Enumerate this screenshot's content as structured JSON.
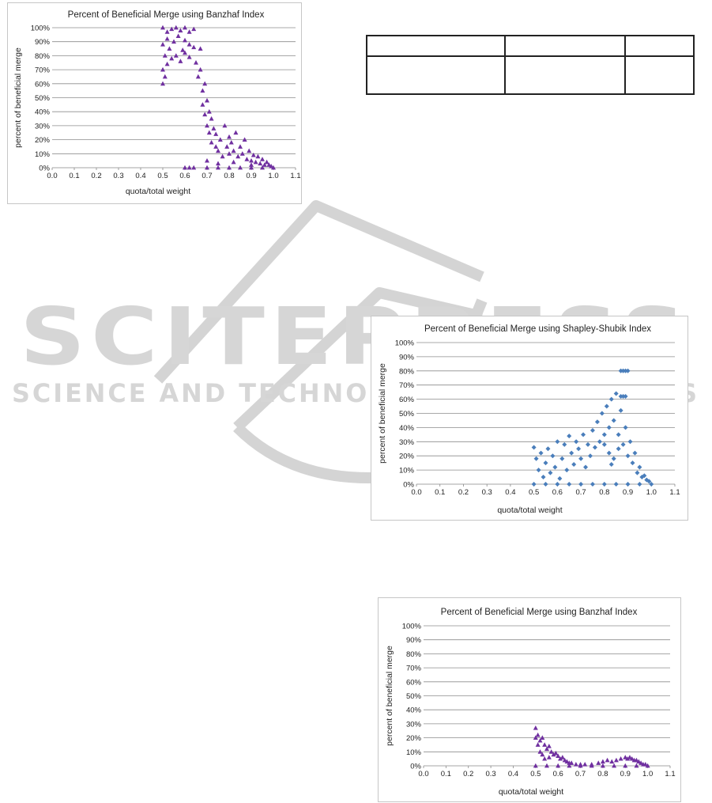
{
  "watermark": {
    "main": "SCITEPRESS",
    "sub": "SCIENCE AND TECHNOLOGY PUBLICATIONS"
  },
  "table": {
    "rows": 2,
    "cols": 3,
    "cells": []
  },
  "chart_data": [
    {
      "id": "top-left",
      "type": "scatter",
      "title": "Percent of Beneficial Merge using Banzhaf Index",
      "xlabel": "quota/total weight",
      "ylabel": "percent of beneficial merge",
      "xlim": [
        0.0,
        1.1
      ],
      "ylim": [
        0,
        100
      ],
      "xticks": [
        "0.0",
        "0.1",
        "0.2",
        "0.3",
        "0.4",
        "0.5",
        "0.6",
        "0.7",
        "0.8",
        "0.9",
        "1.0",
        "1.1"
      ],
      "yticks": [
        "0%",
        "10%",
        "20%",
        "30%",
        "40%",
        "50%",
        "60%",
        "70%",
        "80%",
        "90%",
        "100%"
      ],
      "grid": true,
      "legend": "none",
      "color": "#7030a0",
      "marker": "triangle",
      "series": [
        {
          "points": [
            [
              0.5,
              100
            ],
            [
              0.52,
              97
            ],
            [
              0.54,
              99
            ],
            [
              0.56,
              100
            ],
            [
              0.58,
              98
            ],
            [
              0.6,
              100
            ],
            [
              0.62,
              97
            ],
            [
              0.64,
              99
            ],
            [
              0.5,
              88
            ],
            [
              0.51,
              80
            ],
            [
              0.52,
              92
            ],
            [
              0.53,
              85
            ],
            [
              0.55,
              90
            ],
            [
              0.57,
              94
            ],
            [
              0.59,
              84
            ],
            [
              0.6,
              91
            ],
            [
              0.62,
              88
            ],
            [
              0.64,
              86
            ],
            [
              0.5,
              70
            ],
            [
              0.5,
              60
            ],
            [
              0.51,
              65
            ],
            [
              0.52,
              74
            ],
            [
              0.54,
              78
            ],
            [
              0.56,
              80
            ],
            [
              0.58,
              76
            ],
            [
              0.6,
              82
            ],
            [
              0.62,
              79
            ],
            [
              0.65,
              75
            ],
            [
              0.66,
              65
            ],
            [
              0.67,
              85
            ],
            [
              0.67,
              70
            ],
            [
              0.68,
              55
            ],
            [
              0.68,
              45
            ],
            [
              0.69,
              60
            ],
            [
              0.69,
              38
            ],
            [
              0.7,
              48
            ],
            [
              0.7,
              30
            ],
            [
              0.71,
              40
            ],
            [
              0.71,
              25
            ],
            [
              0.72,
              35
            ],
            [
              0.72,
              18
            ],
            [
              0.73,
              28
            ],
            [
              0.74,
              15
            ],
            [
              0.74,
              24
            ],
            [
              0.75,
              12
            ],
            [
              0.76,
              20
            ],
            [
              0.77,
              8
            ],
            [
              0.78,
              30
            ],
            [
              0.79,
              15
            ],
            [
              0.8,
              10
            ],
            [
              0.8,
              22
            ],
            [
              0.81,
              18
            ],
            [
              0.82,
              12
            ],
            [
              0.83,
              25
            ],
            [
              0.84,
              8
            ],
            [
              0.85,
              15
            ],
            [
              0.86,
              10
            ],
            [
              0.87,
              20
            ],
            [
              0.88,
              6
            ],
            [
              0.89,
              12
            ],
            [
              0.9,
              5
            ],
            [
              0.91,
              9
            ],
            [
              0.92,
              4
            ],
            [
              0.93,
              8
            ],
            [
              0.94,
              3
            ],
            [
              0.95,
              6
            ],
            [
              0.96,
              2
            ],
            [
              0.97,
              4
            ],
            [
              0.98,
              2
            ],
            [
              0.99,
              1
            ],
            [
              1.0,
              0
            ],
            [
              0.6,
              0
            ],
            [
              0.62,
              0
            ],
            [
              0.64,
              0
            ],
            [
              0.7,
              0
            ],
            [
              0.75,
              0
            ],
            [
              0.8,
              0
            ],
            [
              0.85,
              0
            ],
            [
              0.9,
              0
            ],
            [
              0.95,
              0
            ],
            [
              0.7,
              5
            ],
            [
              0.75,
              3
            ],
            [
              0.82,
              4
            ],
            [
              0.9,
              2
            ]
          ]
        }
      ]
    },
    {
      "id": "middle-right",
      "type": "scatter",
      "title": "Percent of Beneficial Merge using Shapley-Shubik Index",
      "xlabel": "quota/total weight",
      "ylabel": "percent of beneficial merge",
      "xlim": [
        0.0,
        1.1
      ],
      "ylim": [
        0,
        100
      ],
      "xticks": [
        "0.0",
        "0.1",
        "0.2",
        "0.3",
        "0.4",
        "0.5",
        "0.6",
        "0.7",
        "0.8",
        "0.9",
        "1.0",
        "1.1"
      ],
      "yticks": [
        "0%",
        "10%",
        "20%",
        "30%",
        "40%",
        "50%",
        "60%",
        "70%",
        "80%",
        "90%",
        "100%"
      ],
      "grid": true,
      "legend": "none",
      "color": "#4a7ebb",
      "marker": "diamond",
      "series": [
        {
          "points": [
            [
              0.5,
              26
            ],
            [
              0.51,
              18
            ],
            [
              0.52,
              10
            ],
            [
              0.53,
              22
            ],
            [
              0.54,
              5
            ],
            [
              0.55,
              15
            ],
            [
              0.56,
              25
            ],
            [
              0.57,
              8
            ],
            [
              0.58,
              20
            ],
            [
              0.59,
              12
            ],
            [
              0.6,
              30
            ],
            [
              0.61,
              4
            ],
            [
              0.62,
              18
            ],
            [
              0.63,
              28
            ],
            [
              0.64,
              10
            ],
            [
              0.65,
              34
            ],
            [
              0.66,
              22
            ],
            [
              0.67,
              14
            ],
            [
              0.68,
              30
            ],
            [
              0.69,
              25
            ],
            [
              0.7,
              18
            ],
            [
              0.71,
              35
            ],
            [
              0.72,
              12
            ],
            [
              0.73,
              28
            ],
            [
              0.74,
              20
            ],
            [
              0.75,
              38
            ],
            [
              0.76,
              26
            ],
            [
              0.77,
              44
            ],
            [
              0.78,
              30
            ],
            [
              0.79,
              50
            ],
            [
              0.8,
              35
            ],
            [
              0.81,
              55
            ],
            [
              0.82,
              40
            ],
            [
              0.83,
              60
            ],
            [
              0.84,
              45
            ],
            [
              0.85,
              64
            ],
            [
              0.86,
              35
            ],
            [
              0.87,
              52
            ],
            [
              0.88,
              28
            ],
            [
              0.89,
              40
            ],
            [
              0.9,
              20
            ],
            [
              0.91,
              30
            ],
            [
              0.92,
              15
            ],
            [
              0.93,
              22
            ],
            [
              0.94,
              8
            ],
            [
              0.95,
              12
            ],
            [
              0.96,
              5
            ],
            [
              0.97,
              6
            ],
            [
              0.98,
              3
            ],
            [
              0.99,
              2
            ],
            [
              1.0,
              0
            ],
            [
              0.87,
              80
            ],
            [
              0.88,
              80
            ],
            [
              0.89,
              80
            ],
            [
              0.9,
              80
            ],
            [
              0.87,
              62
            ],
            [
              0.88,
              62
            ],
            [
              0.89,
              62
            ],
            [
              0.5,
              0
            ],
            [
              0.55,
              0
            ],
            [
              0.6,
              0
            ],
            [
              0.65,
              0
            ],
            [
              0.7,
              0
            ],
            [
              0.75,
              0
            ],
            [
              0.8,
              0
            ],
            [
              0.85,
              0
            ],
            [
              0.9,
              0
            ],
            [
              0.95,
              0
            ],
            [
              0.82,
              22
            ],
            [
              0.84,
              18
            ],
            [
              0.86,
              25
            ],
            [
              0.8,
              28
            ],
            [
              0.83,
              14
            ]
          ]
        }
      ]
    },
    {
      "id": "bottom-right",
      "type": "scatter",
      "title": "Percent of Beneficial Merge using Banzhaf Index",
      "xlabel": "quota/total weight",
      "ylabel": "percent of beneficial merge",
      "xlim": [
        0.0,
        1.1
      ],
      "ylim": [
        0,
        100
      ],
      "xticks": [
        "0.0",
        "0.1",
        "0.2",
        "0.3",
        "0.4",
        "0.5",
        "0.6",
        "0.7",
        "0.8",
        "0.9",
        "1.0",
        "1.1"
      ],
      "yticks": [
        "0%",
        "10%",
        "20%",
        "30%",
        "40%",
        "50%",
        "60%",
        "70%",
        "80%",
        "90%",
        "100%"
      ],
      "grid": true,
      "legend": "none",
      "color": "#7030a0",
      "marker": "triangle",
      "series": [
        {
          "points": [
            [
              0.5,
              27
            ],
            [
              0.5,
              20
            ],
            [
              0.51,
              22
            ],
            [
              0.51,
              15
            ],
            [
              0.52,
              18
            ],
            [
              0.52,
              10
            ],
            [
              0.53,
              20
            ],
            [
              0.53,
              8
            ],
            [
              0.54,
              15
            ],
            [
              0.54,
              5
            ],
            [
              0.55,
              12
            ],
            [
              0.56,
              14
            ],
            [
              0.56,
              6
            ],
            [
              0.57,
              10
            ],
            [
              0.58,
              8
            ],
            [
              0.59,
              9
            ],
            [
              0.6,
              7
            ],
            [
              0.61,
              5
            ],
            [
              0.62,
              6
            ],
            [
              0.63,
              4
            ],
            [
              0.64,
              3
            ],
            [
              0.65,
              2
            ],
            [
              0.66,
              2
            ],
            [
              0.68,
              1
            ],
            [
              0.7,
              1
            ],
            [
              0.72,
              1
            ],
            [
              0.75,
              1
            ],
            [
              0.78,
              2
            ],
            [
              0.8,
              3
            ],
            [
              0.82,
              4
            ],
            [
              0.84,
              3
            ],
            [
              0.86,
              4
            ],
            [
              0.88,
              5
            ],
            [
              0.9,
              6
            ],
            [
              0.91,
              5
            ],
            [
              0.92,
              6
            ],
            [
              0.93,
              5
            ],
            [
              0.94,
              4
            ],
            [
              0.95,
              4
            ],
            [
              0.96,
              3
            ],
            [
              0.97,
              2
            ],
            [
              0.98,
              1
            ],
            [
              0.99,
              1
            ],
            [
              1.0,
              0
            ],
            [
              0.5,
              0
            ],
            [
              0.55,
              0
            ],
            [
              0.6,
              0
            ],
            [
              0.65,
              0
            ],
            [
              0.7,
              0
            ],
            [
              0.75,
              0
            ],
            [
              0.8,
              0
            ],
            [
              0.85,
              0
            ],
            [
              0.9,
              0
            ],
            [
              0.95,
              0
            ]
          ]
        }
      ]
    }
  ]
}
